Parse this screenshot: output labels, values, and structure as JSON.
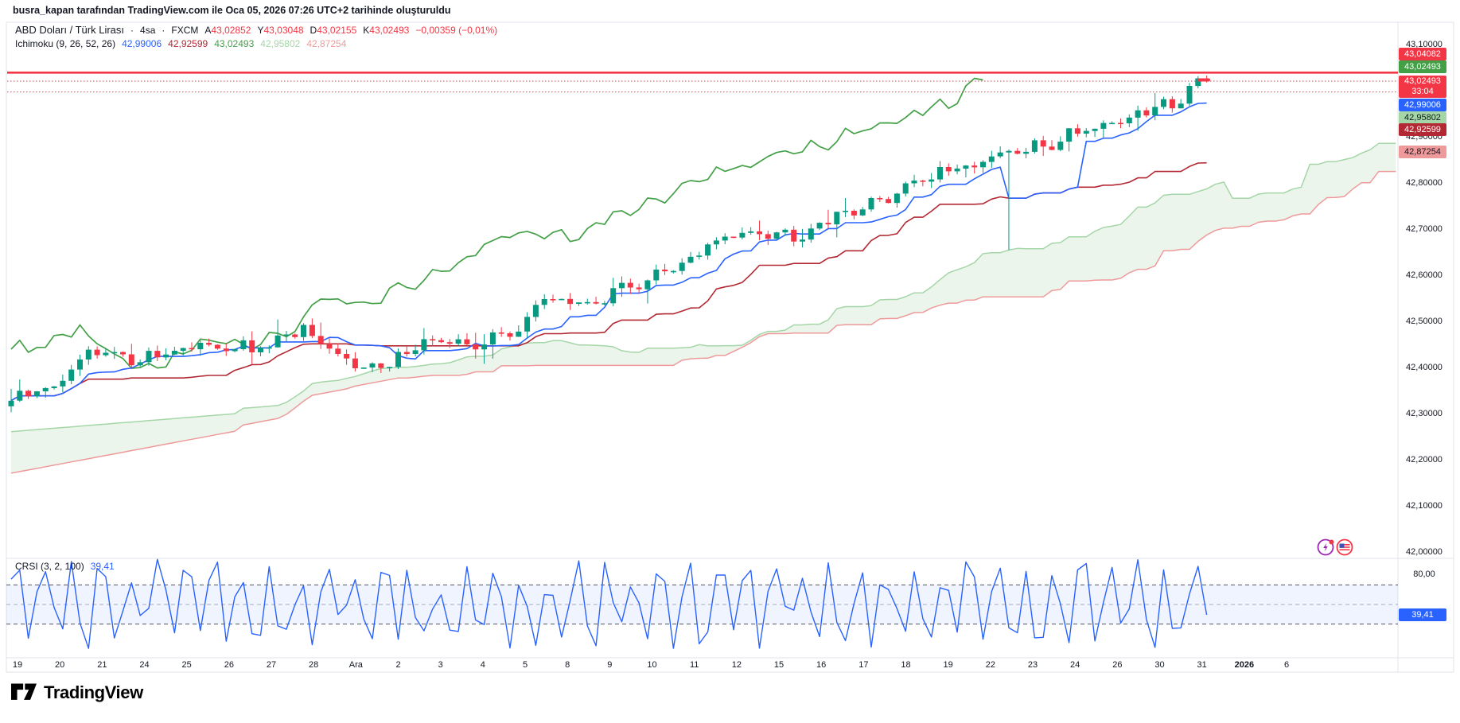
{
  "attribution": "busra_kapan tarafından TradingView.com ile Oca 05, 2026 07:26 UTC+2 tarihinde oluşturuldu",
  "legend": {
    "symbol": "ABD Doları / Türk Lirası",
    "interval": "4sa",
    "exchange": "FXCM",
    "sep": "·",
    "ohlc": [
      {
        "k": "A",
        "v": "43,02852"
      },
      {
        "k": "Y",
        "v": "43,03048"
      },
      {
        "k": "D",
        "v": "43,02155"
      },
      {
        "k": "K",
        "v": "43,02493"
      }
    ],
    "change": "−0,00359 (−0,01%)",
    "ichimoku_label": "Ichimoku (9, 26, 52, 26)",
    "ichimoku_values": [
      {
        "v": "42,99006",
        "c": "#2962FF"
      },
      {
        "v": "42,92599",
        "c": "#B22833"
      },
      {
        "v": "43,02493",
        "c": "#43A047"
      },
      {
        "v": "42,95802",
        "c": "#A5D6A7"
      },
      {
        "v": "42,87254",
        "c": "#EF9A9A"
      }
    ],
    "crsi_label": "CRSI (3, 2, 100)",
    "crsi_value": "39,41"
  },
  "price_badges": [
    {
      "text": "43,04082",
      "bg": "#F23645",
      "fg": "#ffffff",
      "y": 68
    },
    {
      "text": "43,02493",
      "bg": "#43A047",
      "fg": "#ffffff",
      "y": 84
    },
    {
      "text": "43,02493",
      "sub": "33:04",
      "bg": "#F23645",
      "fg": "#ffffff",
      "y": 108
    },
    {
      "text": "42,99006",
      "bg": "#2962FF",
      "fg": "#ffffff",
      "y": 132
    },
    {
      "text": "42,95802",
      "bg": "#A5D6A7",
      "fg": "#131722",
      "y": 148
    },
    {
      "text": "42,92599",
      "bg": "#B22833",
      "fg": "#ffffff",
      "y": 163
    },
    {
      "text": "42,87254",
      "bg": "#EF9A9A",
      "fg": "#131722",
      "y": 191
    }
  ],
  "crsi_scale": {
    "tick": "80,00",
    "badge": "39,41",
    "badge_bg": "#2962FF",
    "badge_fg": "#ffffff"
  },
  "logo_text": "TradingView",
  "colors": {
    "up": "#089981",
    "down": "#F23645",
    "conversion": "#2962FF",
    "base": "#B22833",
    "lagging": "#43A047",
    "lead1": "#A5D6A7",
    "lead2": "#EF9A9A",
    "cloud_fill": "rgba(67,160,71,0.10)",
    "crsi_line": "#2962FF",
    "crsi_band_fill": "rgba(41,98,255,0.07)",
    "accent_red": "#F23645",
    "text": "#131722",
    "border": "#e0e3eb"
  },
  "chart_data": [
    {
      "type": "candlestick",
      "title": "ABD Doları / Türk Lirası · 4sa · FXCM",
      "overlay": "Ichimoku (9, 26, 52, 26)",
      "ylim": [
        42.0,
        43.1
      ],
      "y_ticks": [
        "43,10000",
        "43,00000",
        "42,90000",
        "42,80000",
        "42,70000",
        "42,60000",
        "42,50000",
        "42,40000",
        "42,30000",
        "42,20000",
        "42,10000",
        "42,00000"
      ],
      "x_labels": [
        "19",
        "20",
        "21",
        "24",
        "25",
        "26",
        "27",
        "28",
        "Ara",
        "2",
        "3",
        "4",
        "5",
        "8",
        "9",
        "10",
        "11",
        "12",
        "15",
        "16",
        "17",
        "18",
        "19",
        "22",
        "23",
        "24",
        "26",
        "30",
        "31",
        "2026",
        "6"
      ],
      "bars": 140,
      "close_anchors": [
        42.33,
        42.36,
        42.43,
        42.42,
        42.44,
        42.45,
        42.44,
        42.48,
        42.42,
        42.4,
        42.46,
        42.45,
        42.47,
        42.55,
        42.54,
        42.58,
        42.61,
        42.67,
        42.7,
        42.69,
        42.73,
        42.76,
        42.81,
        42.83,
        42.86,
        42.88,
        42.92,
        42.94,
        42.97,
        43.025
      ],
      "last_ohlc": {
        "open": 43.02852,
        "high": 43.03048,
        "low": 43.02155,
        "close": 43.02493
      },
      "change": -0.00359,
      "change_pct": -0.01,
      "ichimoku": {
        "params": [
          9,
          26,
          52,
          26
        ],
        "conversion": 42.99006,
        "base": 42.92599,
        "lagging": 43.02493,
        "lead1": 42.95802,
        "lead2": 42.87254
      },
      "horizontal_line": 43.04082,
      "price_line": 43.02493,
      "countdown": "33:04"
    },
    {
      "type": "line",
      "name": "CRSI (3, 2, 100)",
      "last_value": 39.41,
      "bands": {
        "upper": 70,
        "middle": 50,
        "lower": 30
      },
      "y_tick": "80,00",
      "ylim": [
        0,
        100
      ]
    }
  ]
}
